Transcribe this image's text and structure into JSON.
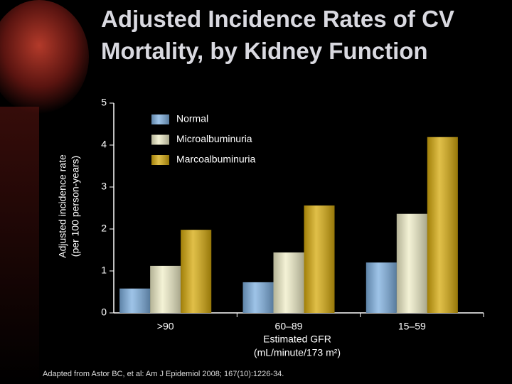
{
  "chart_data": {
    "type": "bar",
    "title_lines": [
      "Adjusted Incidence Rates of CV",
      "Mortality, by Kidney Function"
    ],
    "y_label_lines": [
      "Adjusted incidence rate",
      "(per 100 person-years)"
    ],
    "x_label_lines": [
      "Estimated GFR",
      "(mL/minute/173 m²)"
    ],
    "footnote": "Adapted from Astor BC, et al: Am J Epidemiol 2008; 167(10):1226-34.",
    "categories": [
      ">90",
      "60–89",
      "15–59"
    ],
    "series": [
      {
        "name": "Normal",
        "color": "#7eb0e0",
        "values": [
          0.58,
          0.73,
          1.2
        ]
      },
      {
        "name": "Microalbuminuria",
        "color": "#f0eec8",
        "values": [
          1.12,
          1.44,
          2.36
        ]
      },
      {
        "name": "Marcoalbuminuria",
        "color": "#d6aa0c",
        "values": [
          1.98,
          2.56,
          4.19
        ]
      }
    ],
    "ylim": [
      0,
      5
    ],
    "yticks": [
      0,
      1,
      2,
      3,
      4,
      5
    ]
  }
}
